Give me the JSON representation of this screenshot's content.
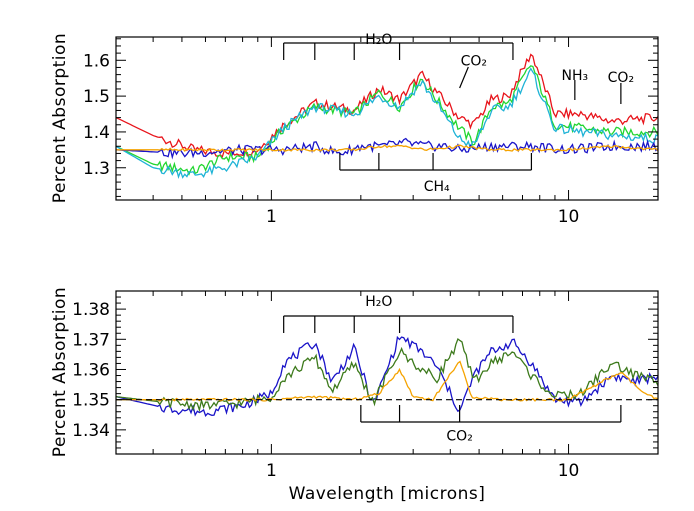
{
  "colors": {
    "red": "#e8141b",
    "green": "#22d630",
    "cyan": "#1fb3d6",
    "blue": "#1a14c8",
    "orange": "#f5a300",
    "darkgreen": "#3d7a1c",
    "axis": "#000000"
  },
  "chart_data": [
    {
      "type": "line",
      "xscale": "log",
      "xlim": [
        0.3,
        20
      ],
      "ylim": [
        1.21,
        1.665
      ],
      "xticks": [
        1,
        10
      ],
      "xtick_labels": [
        "1",
        "10"
      ],
      "yticks": [
        1.3,
        1.4,
        1.5,
        1.6
      ],
      "ytick_labels": [
        "1.3",
        "1.4",
        "1.5",
        "1.6"
      ],
      "xlabel": "",
      "ylabel": "Percent Absorption",
      "grid": false,
      "series": [
        {
          "color": "red",
          "x": [
            0.3,
            0.4,
            0.55,
            0.7,
            0.9,
            1.1,
            1.4,
            1.9,
            2.3,
            2.7,
            3.2,
            3.6,
            4.3,
            4.8,
            5.5,
            6.3,
            7.5,
            9,
            11,
            14,
            20
          ],
          "y": [
            1.44,
            1.39,
            1.35,
            1.34,
            1.35,
            1.42,
            1.48,
            1.46,
            1.52,
            1.49,
            1.56,
            1.51,
            1.44,
            1.42,
            1.49,
            1.5,
            1.62,
            1.45,
            1.45,
            1.43,
            1.44
          ]
        },
        {
          "color": "green",
          "x": [
            0.3,
            0.4,
            0.55,
            0.7,
            0.9,
            1.1,
            1.4,
            1.9,
            2.3,
            2.7,
            3.2,
            3.6,
            4.3,
            4.8,
            5.5,
            6.3,
            7.5,
            9,
            11,
            14,
            20
          ],
          "y": [
            1.36,
            1.31,
            1.29,
            1.33,
            1.33,
            1.41,
            1.47,
            1.45,
            1.51,
            1.47,
            1.55,
            1.49,
            1.41,
            1.37,
            1.47,
            1.48,
            1.59,
            1.42,
            1.41,
            1.4,
            1.4
          ]
        },
        {
          "color": "cyan",
          "x": [
            0.3,
            0.4,
            0.55,
            0.7,
            0.9,
            1.1,
            1.4,
            1.9,
            2.3,
            2.7,
            3.2,
            3.6,
            4.3,
            4.8,
            5.5,
            6.3,
            7.5,
            9,
            11,
            14,
            20
          ],
          "y": [
            1.36,
            1.3,
            1.28,
            1.3,
            1.33,
            1.41,
            1.47,
            1.45,
            1.5,
            1.47,
            1.54,
            1.48,
            1.38,
            1.36,
            1.46,
            1.47,
            1.57,
            1.41,
            1.4,
            1.39,
            1.38
          ]
        },
        {
          "color": "blue",
          "x": [
            0.3,
            0.5,
            0.8,
            1.1,
            1.4,
            1.7,
            2.0,
            2.4,
            2.8,
            3.3,
            3.8,
            4.3,
            5.5,
            7.5,
            10,
            14,
            20
          ],
          "y": [
            1.35,
            1.34,
            1.35,
            1.35,
            1.36,
            1.34,
            1.36,
            1.36,
            1.37,
            1.36,
            1.36,
            1.35,
            1.36,
            1.36,
            1.35,
            1.36,
            1.36
          ]
        },
        {
          "color": "orange",
          "x": [
            0.3,
            0.7,
            1.0,
            1.4,
            1.9,
            2.3,
            2.8,
            3.3,
            4.3,
            5.5,
            7.5,
            10,
            14,
            20
          ],
          "y": [
            1.35,
            1.35,
            1.35,
            1.35,
            1.35,
            1.36,
            1.36,
            1.35,
            1.36,
            1.35,
            1.35,
            1.35,
            1.36,
            1.35
          ]
        }
      ],
      "annotations": [
        {
          "text": "H₂O",
          "x": 2.3,
          "y": 1.645
        },
        {
          "text": "CO₂",
          "x": 4.8,
          "y": 1.585
        },
        {
          "text": "NH₃",
          "x": 10.5,
          "y": 1.545
        },
        {
          "text": "CO₂",
          "x": 15,
          "y": 1.54
        },
        {
          "text": "CH₄",
          "x": 3.6,
          "y": 1.235
        }
      ]
    },
    {
      "type": "line",
      "xscale": "log",
      "xlim": [
        0.3,
        20
      ],
      "ylim": [
        1.332,
        1.386
      ],
      "xticks": [
        1,
        10
      ],
      "xtick_labels": [
        "1",
        "10"
      ],
      "yticks": [
        1.34,
        1.35,
        1.36,
        1.37,
        1.38
      ],
      "ytick_labels": [
        "1.34",
        "1.35",
        "1.36",
        "1.37",
        "1.38"
      ],
      "xlabel": "Wavelength [microns]",
      "ylabel": "Percent Absorption",
      "grid": false,
      "series": [
        {
          "color": "blue",
          "x": [
            0.3,
            0.45,
            0.6,
            0.8,
            1.0,
            1.1,
            1.4,
            1.6,
            1.9,
            2.2,
            2.7,
            3.2,
            3.6,
            4.3,
            4.8,
            5.5,
            6.5,
            7.5,
            9,
            11,
            14,
            17,
            20
          ],
          "y": [
            1.351,
            1.347,
            1.346,
            1.348,
            1.352,
            1.362,
            1.369,
            1.356,
            1.367,
            1.348,
            1.371,
            1.366,
            1.361,
            1.346,
            1.358,
            1.366,
            1.369,
            1.362,
            1.35,
            1.349,
            1.358,
            1.356,
            1.358
          ]
        },
        {
          "color": "darkgreen",
          "x": [
            0.3,
            0.45,
            0.6,
            0.8,
            1.0,
            1.1,
            1.4,
            1.6,
            1.9,
            2.2,
            2.7,
            3.2,
            3.6,
            4.3,
            4.8,
            5.5,
            6.5,
            7.5,
            9,
            11,
            14,
            17,
            20
          ],
          "y": [
            1.351,
            1.349,
            1.348,
            1.349,
            1.351,
            1.357,
            1.364,
            1.353,
            1.362,
            1.349,
            1.366,
            1.36,
            1.357,
            1.37,
            1.356,
            1.362,
            1.366,
            1.358,
            1.351,
            1.352,
            1.362,
            1.358,
            1.356
          ]
        },
        {
          "color": "orange",
          "x": [
            0.3,
            0.6,
            1.0,
            1.4,
            1.9,
            2.3,
            2.7,
            3.0,
            3.5,
            4.3,
            4.7,
            6,
            8,
            10,
            13,
            15,
            18,
            20
          ],
          "y": [
            1.35,
            1.35,
            1.35,
            1.351,
            1.35,
            1.352,
            1.36,
            1.351,
            1.35,
            1.363,
            1.351,
            1.35,
            1.35,
            1.35,
            1.356,
            1.359,
            1.352,
            1.35
          ]
        }
      ],
      "reference_line": {
        "y": 1.35,
        "style": "dashed"
      },
      "annotations": [
        {
          "text": "H₂O",
          "x": 2.3,
          "y": 1.381
        },
        {
          "text": "CO₂",
          "x": 4.3,
          "y": 1.3365
        }
      ]
    }
  ]
}
